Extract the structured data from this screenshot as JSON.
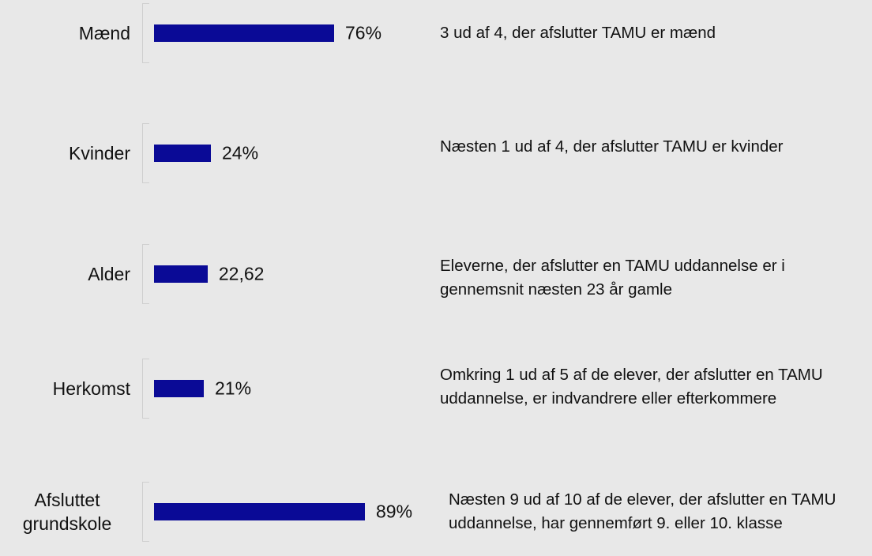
{
  "chart_data": {
    "type": "bar",
    "orientation": "horizontal",
    "color": "#0a0a96",
    "categories": [
      "Mænd",
      "Kvinder",
      "Alder",
      "Herkomst",
      "Afsluttet grundskole"
    ],
    "values": [
      76,
      24,
      22.62,
      21,
      89
    ],
    "value_labels": [
      "76%",
      "24%",
      "22,62",
      "21%",
      "89%"
    ],
    "annotations": [
      "3 ud af 4, der afslutter TAMU er mænd",
      "Næsten 1 ud af 4, der afslutter TAMU er kvinder",
      "Eleverne, der afslutter en TAMU uddannelse er i gennemsnit næsten 23 år gamle",
      "Omkring 1 ud af 5 af de elever, der afslutter en TAMU uddannelse, er indvandrere eller efterkommere",
      "Næsten 9 ud af 10 af de elever, der afslutter en TAMU uddannelse, har gennemført 9. eller 10. klasse"
    ]
  }
}
